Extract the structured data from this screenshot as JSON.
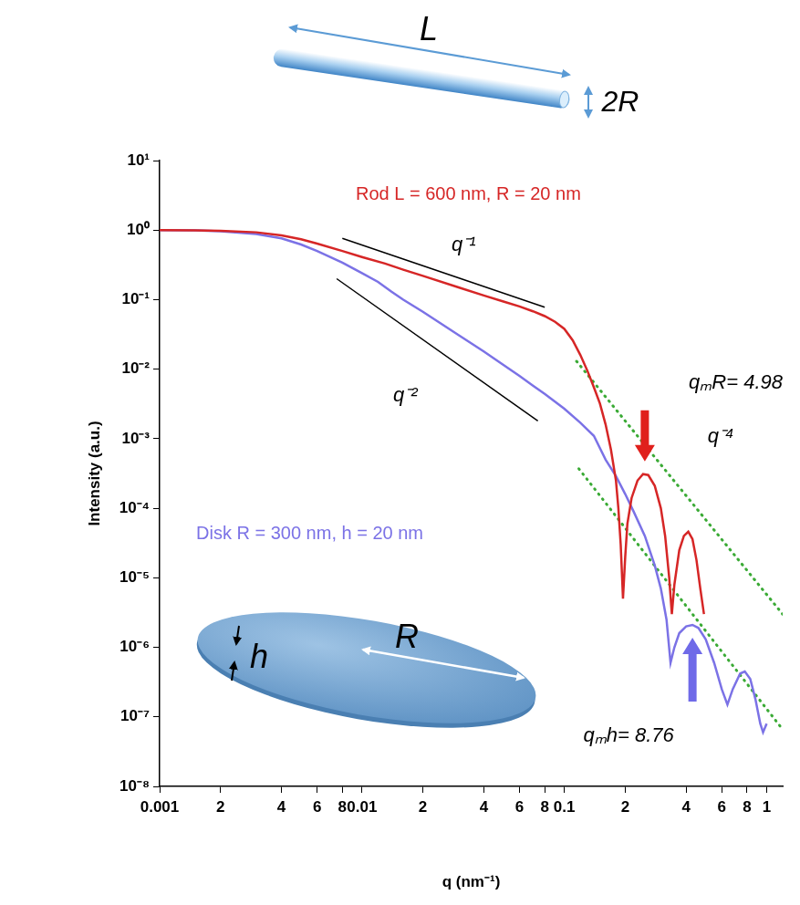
{
  "chart_data": {
    "type": "line",
    "x_label": "q (nm⁻¹)",
    "y_label": "Intensity (a.u.)",
    "log": true,
    "grid": false,
    "xlim": [
      0.001,
      1.2
    ],
    "ylim": [
      1e-08,
      10
    ],
    "xticks": [
      0.001,
      {
        "value": 0.002,
        "label": "2"
      },
      {
        "value": 0.004,
        "label": "4"
      },
      {
        "value": 0.006,
        "label": "6"
      },
      {
        "value": 0.008,
        "label": "8"
      },
      0.01,
      {
        "value": 0.02,
        "label": "2"
      },
      {
        "value": 0.04,
        "label": "4"
      },
      {
        "value": 0.06,
        "label": "6"
      },
      {
        "value": 0.08,
        "label": "8"
      },
      0.1,
      {
        "value": 0.2,
        "label": "2"
      },
      {
        "value": 0.4,
        "label": "4"
      },
      {
        "value": 0.6,
        "label": "6"
      },
      {
        "value": 0.8,
        "label": "8"
      },
      1
    ],
    "yticks": [
      {
        "value": 10,
        "label": "10¹"
      },
      {
        "value": 1,
        "label": "10⁰"
      },
      {
        "value": 0.1,
        "label": "10⁻¹"
      },
      {
        "value": 0.01,
        "label": "10⁻²"
      },
      {
        "value": 0.001,
        "label": "10⁻³"
      },
      {
        "value": 0.0001,
        "label": "10⁻⁴"
      },
      {
        "value": 1e-05,
        "label": "10⁻⁵"
      },
      {
        "value": 1e-06,
        "label": "10⁻⁶"
      },
      {
        "value": 1e-07,
        "label": "10⁻⁷"
      },
      {
        "value": 1e-08,
        "label": "10⁻⁸"
      }
    ],
    "series": [
      {
        "name": "Rod L = 600 nm, R = 20 nm",
        "color": "#d62626",
        "line_style": "solid",
        "x": [
          0.001,
          0.0015,
          0.002,
          0.003,
          0.004,
          0.005,
          0.006,
          0.008,
          0.01,
          0.013,
          0.016,
          0.02,
          0.03,
          0.04,
          0.05,
          0.06,
          0.07,
          0.08,
          0.09,
          0.1,
          0.11,
          0.12,
          0.13,
          0.14,
          0.15,
          0.16,
          0.17,
          0.18,
          0.185,
          0.19,
          0.195,
          0.2,
          0.205,
          0.215,
          0.23,
          0.245,
          0.26,
          0.28,
          0.3,
          0.315,
          0.33,
          0.34,
          0.35,
          0.37,
          0.39,
          0.41,
          0.43,
          0.45,
          0.47,
          0.49
        ],
        "values": [
          1,
          0.995,
          0.98,
          0.93,
          0.84,
          0.74,
          0.64,
          0.5,
          0.41,
          0.33,
          0.27,
          0.22,
          0.15,
          0.115,
          0.094,
          0.08,
          0.068,
          0.058,
          0.048,
          0.038,
          0.026,
          0.016,
          0.0095,
          0.0055,
          0.0032,
          0.0016,
          0.0007,
          0.00025,
          0.0001,
          3e-05,
          5e-06,
          2e-05,
          6e-05,
          0.00014,
          0.00025,
          0.00031,
          0.0003,
          0.00021,
          0.0001,
          4e-05,
          1e-05,
          3e-06,
          8e-06,
          2.5e-05,
          4e-05,
          4.6e-05,
          3.6e-05,
          1.8e-05,
          7e-06,
          3e-06
        ]
      },
      {
        "name": "Disk R = 300 nm, h = 20 nm",
        "color": "#7b72e6",
        "line_style": "solid",
        "x": [
          0.001,
          0.0015,
          0.002,
          0.003,
          0.004,
          0.005,
          0.006,
          0.008,
          0.01,
          0.012,
          0.014,
          0.016,
          0.02,
          0.03,
          0.04,
          0.05,
          0.06,
          0.07,
          0.08,
          0.1,
          0.12,
          0.14,
          0.16,
          0.18,
          0.2,
          0.22,
          0.25,
          0.28,
          0.3,
          0.32,
          0.335,
          0.35,
          0.37,
          0.4,
          0.43,
          0.46,
          0.5,
          0.55,
          0.6,
          0.64,
          0.68,
          0.74,
          0.78,
          0.83,
          0.88,
          0.93,
          0.96,
          1
        ],
        "values": [
          1,
          0.99,
          0.96,
          0.88,
          0.76,
          0.62,
          0.5,
          0.34,
          0.24,
          0.18,
          0.13,
          0.1,
          0.067,
          0.031,
          0.018,
          0.0115,
          0.008,
          0.0058,
          0.0044,
          0.0027,
          0.0017,
          0.0011,
          0.0005,
          0.00029,
          0.00016,
          9e-05,
          4e-05,
          1.5e-05,
          7e-06,
          2.5e-06,
          6e-07,
          1e-06,
          1.6e-06,
          2e-06,
          2.1e-06,
          1.9e-06,
          1.3e-06,
          6e-07,
          2.5e-07,
          1.5e-07,
          2.5e-07,
          4.2e-07,
          4.5e-07,
          3.5e-07,
          1.8e-07,
          8e-08,
          6e-08,
          8e-08
        ]
      }
    ],
    "annotations": [
      {
        "text": "q⁻¹",
        "x": [
          0.008,
          0.08
        ],
        "values": [
          0.76,
          0.078
        ],
        "color": "#000000",
        "line_style": "solid"
      },
      {
        "text": "q⁻²",
        "x": [
          0.0075,
          0.074
        ],
        "values": [
          0.2,
          0.0018
        ],
        "color": "#000000",
        "line_style": "solid"
      },
      {
        "text": "q⁻⁴",
        "x": [
          0.115,
          1.2
        ],
        "values": [
          0.013,
          3e-06
        ],
        "color": "#3aaa35",
        "line_style": "dotted"
      },
      {
        "x": [
          0.118,
          1.2
        ],
        "values": [
          0.00037,
          6.6e-08
        ],
        "color": "#3aaa35",
        "line_style": "dotted"
      }
    ],
    "markers": [
      {
        "text": "qₘR= 4.98",
        "x": 0.25,
        "color": "#e0201c"
      },
      {
        "text": "qₘh= 8.76",
        "x": 0.43,
        "color": "#6f6ae8"
      }
    ]
  },
  "diagram": {
    "rod": {
      "length_label": "L",
      "diameter_label": "2R"
    },
    "disk": {
      "radius_label": "R",
      "thickness_label": "h"
    }
  }
}
